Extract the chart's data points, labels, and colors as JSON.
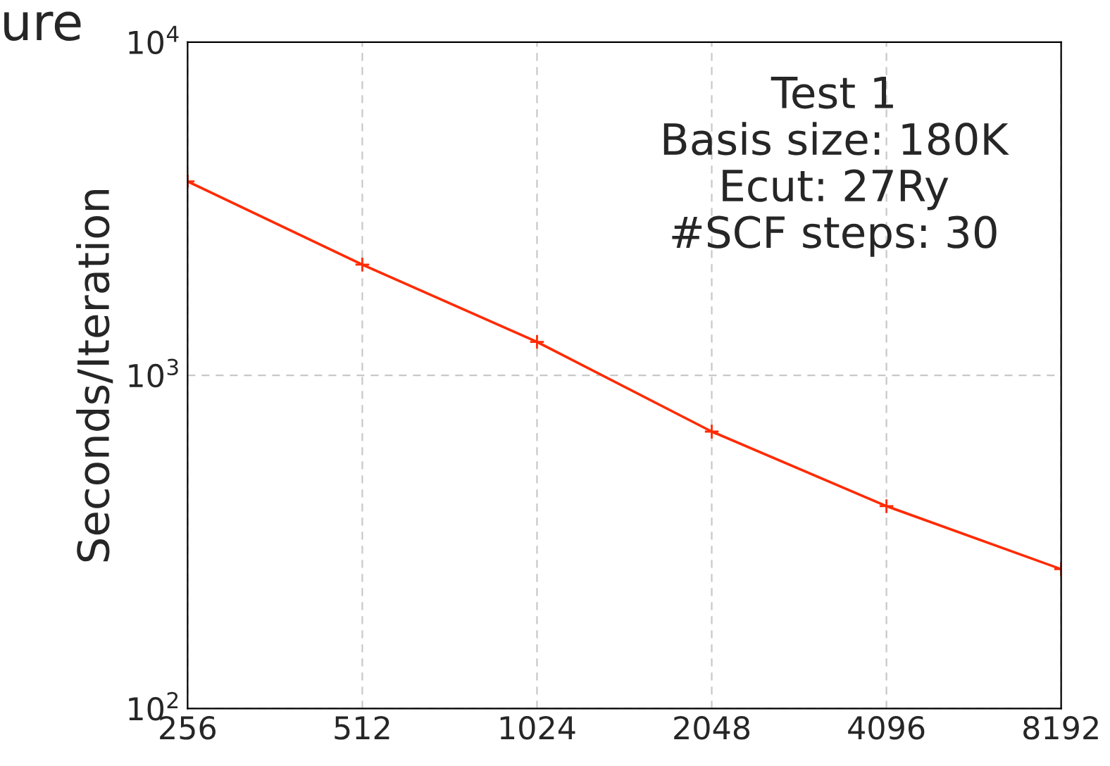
{
  "chart_data": {
    "type": "line",
    "title": "ure",
    "ylabel": "Seconds/Iteration",
    "x": [
      256,
      512,
      1024,
      2048,
      4096,
      8192
    ],
    "series": [
      {
        "color": "#ff2a00",
        "values": [
          3820,
          2150,
          1260,
          678,
          405,
          262
        ]
      }
    ],
    "log": "xy",
    "xlim": [
      256,
      8192
    ],
    "xticks": [
      256,
      512,
      1024,
      2048,
      4096,
      8192
    ],
    "ylim": [
      100,
      10000
    ],
    "yticks": [
      {
        "value": 100,
        "label": "10$^{2}$"
      },
      {
        "value": 1000,
        "label": "10$^{3}$"
      },
      {
        "value": 10000,
        "label": "10$^{4}$"
      }
    ],
    "grid": true,
    "marker": "cross",
    "line_style": "solid",
    "annotations": [
      "Test 1\nBasis size: 180K\nEcut: 27Ry\n#SCF steps: 30"
    ]
  }
}
